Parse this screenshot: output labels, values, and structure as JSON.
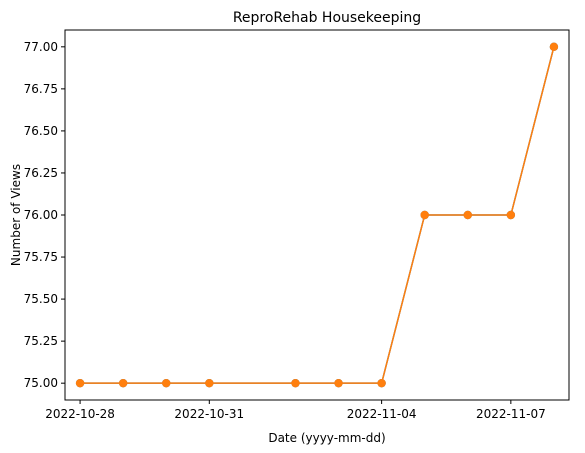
{
  "chart_data": {
    "type": "line",
    "title": "ReproRehab Housekeeping",
    "xlabel": "Date (yyyy-mm-dd)",
    "ylabel": "Number of Views",
    "x": [
      "2022-10-28",
      "2022-10-29",
      "2022-10-30",
      "2022-10-31",
      "2022-11-02",
      "2022-11-03",
      "2022-11-04",
      "2022-11-05",
      "2022-11-06",
      "2022-11-07",
      "2022-11-08"
    ],
    "series": [
      {
        "color": "#1f77b4",
        "values": [
          75,
          75,
          75,
          75,
          75,
          75,
          75,
          76,
          76,
          76,
          77
        ],
        "marker": "circle"
      },
      {
        "color": "#ff7f0e",
        "values": [
          75,
          75,
          75,
          75,
          75,
          75,
          75,
          76,
          76,
          76,
          77
        ],
        "marker": "circle"
      }
    ],
    "xticks": [
      "2022-10-28",
      "2022-10-31",
      "2022-11-04",
      "2022-11-07"
    ],
    "yticks": [
      "75.00",
      "75.25",
      "75.50",
      "75.75",
      "76.00",
      "76.25",
      "76.50",
      "76.75",
      "77.00"
    ],
    "xlim": [
      "2022-10-27T15:36",
      "2022-11-08T08:24"
    ],
    "ylim": [
      74.9,
      77.1
    ],
    "grid": false,
    "legend": "none"
  }
}
